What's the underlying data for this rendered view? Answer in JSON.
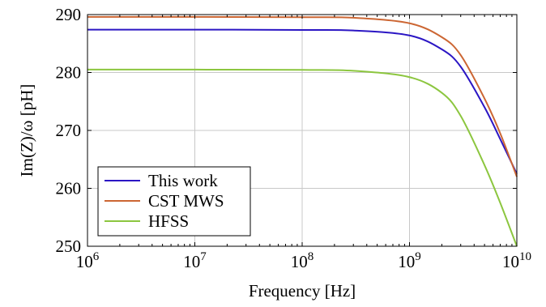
{
  "chart_data": {
    "type": "line",
    "title": "",
    "xlabel": "Frequency [Hz]",
    "ylabel": "Im(Z)/ω [pH]",
    "xscale": "log",
    "xlim": [
      1000000,
      10000000000
    ],
    "ylim": [
      250,
      290
    ],
    "grid": true,
    "legend_position": "bottom-left",
    "x_ticks": [
      {
        "value": 1000000,
        "base": "10",
        "exp": "6"
      },
      {
        "value": 10000000,
        "base": "10",
        "exp": "7"
      },
      {
        "value": 100000000,
        "base": "10",
        "exp": "8"
      },
      {
        "value": 1000000000,
        "base": "10",
        "exp": "9"
      },
      {
        "value": 10000000000,
        "base": "10",
        "exp": "10"
      }
    ],
    "y_ticks": [
      250,
      260,
      270,
      280,
      290
    ],
    "x": [
      1000000,
      10000000,
      100000000,
      300000000,
      1000000000,
      2000000000,
      3000000000,
      5000000000,
      7000000000,
      10000000000
    ],
    "series": [
      {
        "name": "This work",
        "color": "#2b16c4",
        "values": [
          287.4,
          287.4,
          287.35,
          287.25,
          286.4,
          284.0,
          281.0,
          274.0,
          268.5,
          262.5
        ]
      },
      {
        "name": "CST MWS",
        "color": "#cc6633",
        "values": [
          289.6,
          289.6,
          289.55,
          289.45,
          288.5,
          286.1,
          283.0,
          275.5,
          269.5,
          262.0
        ]
      },
      {
        "name": "HFSS",
        "color": "#8cc63f",
        "values": [
          280.5,
          280.5,
          280.45,
          280.3,
          279.2,
          276.5,
          272.5,
          264.0,
          257.5,
          250.0
        ]
      }
    ]
  }
}
